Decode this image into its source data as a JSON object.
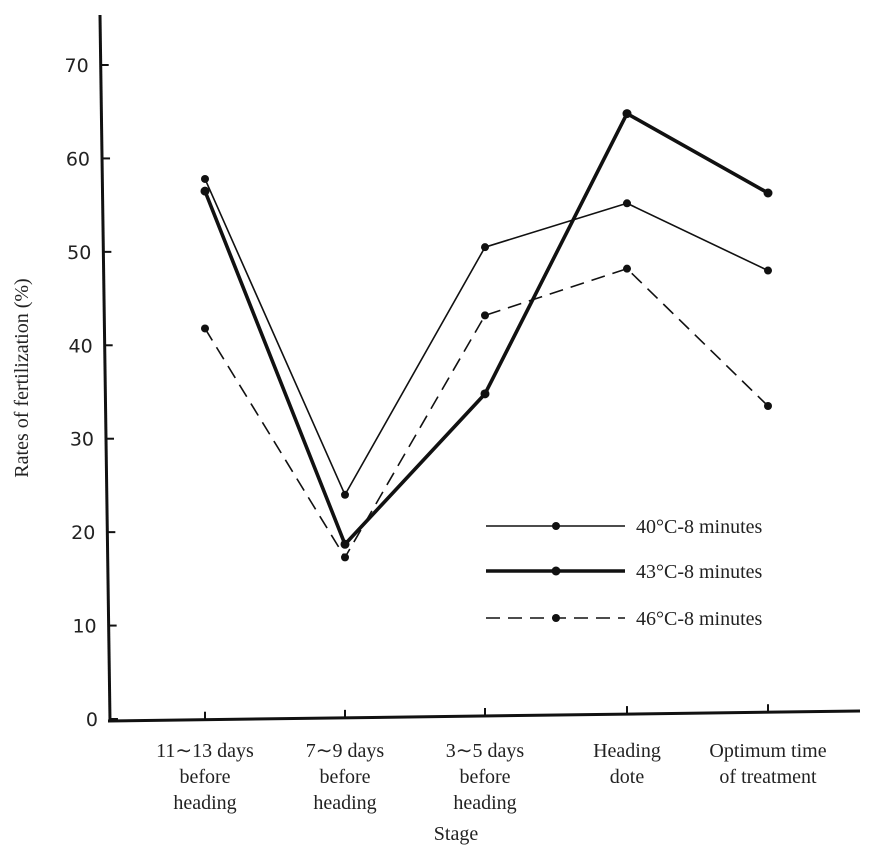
{
  "chart_data": {
    "type": "line",
    "xlabel": "Stage",
    "ylabel": "Rates of fertilization (%)",
    "ylim": [
      0,
      70
    ],
    "yticks": [
      "0",
      "10",
      "20",
      "30",
      "40",
      "50",
      "60",
      "70"
    ],
    "categories": [
      [
        "11∼13 days",
        "before",
        "heading"
      ],
      [
        "7∼9 days",
        "before",
        "heading"
      ],
      [
        "3∼5 days",
        "before",
        "heading"
      ],
      [
        "Heading",
        "dote"
      ],
      [
        "Optimum time",
        "of treatment"
      ]
    ],
    "series": [
      {
        "name": "40°C-8 minutes",
        "style": "thin-solid",
        "values": [
          57.8,
          24.0,
          50.5,
          55.2,
          48.0
        ]
      },
      {
        "name": "43°C-8 minutes",
        "style": "thick-solid",
        "values": [
          56.5,
          18.7,
          34.8,
          64.8,
          56.3
        ]
      },
      {
        "name": "46°C-8 minutes",
        "style": "dashed",
        "values": [
          41.8,
          17.3,
          43.2,
          48.2,
          33.5
        ]
      }
    ],
    "legend_position": "lower-right",
    "grid": false,
    "colors": {
      "line": "#111111",
      "axis": "#111111"
    }
  }
}
